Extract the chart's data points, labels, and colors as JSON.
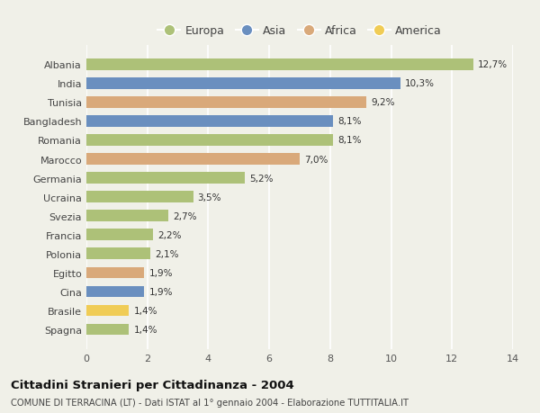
{
  "countries": [
    "Albania",
    "India",
    "Tunisia",
    "Bangladesh",
    "Romania",
    "Marocco",
    "Germania",
    "Ucraina",
    "Svezia",
    "Francia",
    "Polonia",
    "Egitto",
    "Cina",
    "Brasile",
    "Spagna"
  ],
  "values": [
    12.7,
    10.3,
    9.2,
    8.1,
    8.1,
    7.0,
    5.2,
    3.5,
    2.7,
    2.2,
    2.1,
    1.9,
    1.9,
    1.4,
    1.4
  ],
  "labels": [
    "12,7%",
    "10,3%",
    "9,2%",
    "8,1%",
    "8,1%",
    "7,0%",
    "5,2%",
    "3,5%",
    "2,7%",
    "2,2%",
    "2,1%",
    "1,9%",
    "1,9%",
    "1,4%",
    "1,4%"
  ],
  "continents": [
    "Europa",
    "Asia",
    "Africa",
    "Asia",
    "Europa",
    "Africa",
    "Europa",
    "Europa",
    "Europa",
    "Europa",
    "Europa",
    "Africa",
    "Asia",
    "America",
    "Europa"
  ],
  "colors": {
    "Europa": "#adc178",
    "Asia": "#6a8fbf",
    "Africa": "#d9a97a",
    "America": "#f0cc55"
  },
  "legend_order": [
    "Europa",
    "Asia",
    "Africa",
    "America"
  ],
  "title": "Cittadini Stranieri per Cittadinanza - 2004",
  "subtitle": "COMUNE DI TERRACINA (LT) - Dati ISTAT al 1° gennaio 2004 - Elaborazione TUTTITALIA.IT",
  "xlim": [
    0,
    14
  ],
  "xticks": [
    0,
    2,
    4,
    6,
    8,
    10,
    12,
    14
  ],
  "background_color": "#f0f0e8",
  "grid_color": "#ffffff",
  "bar_height": 0.6
}
